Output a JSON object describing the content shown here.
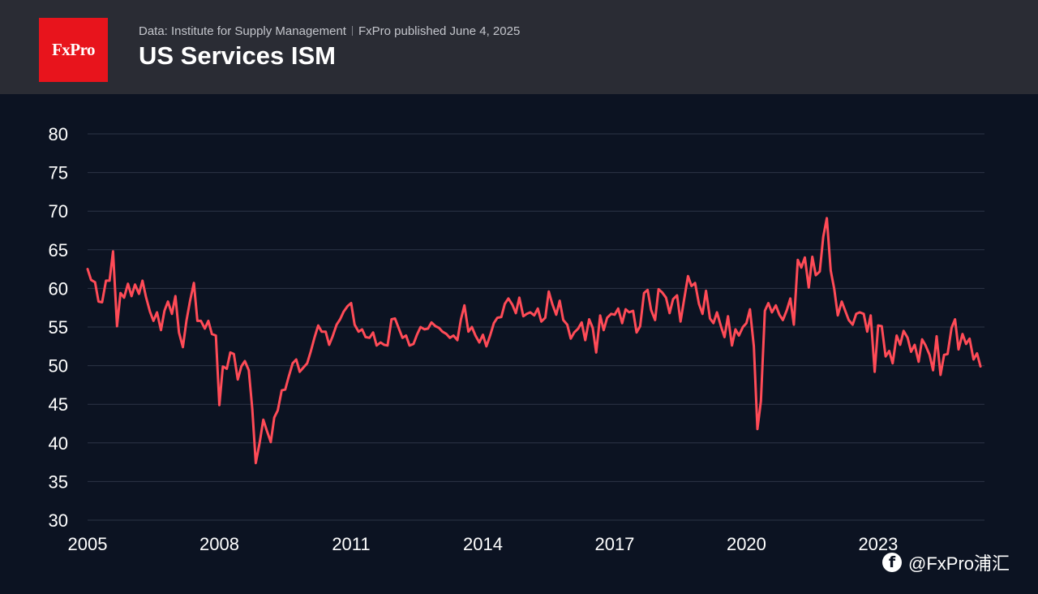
{
  "header": {
    "logo_text": "FxPro",
    "source": "Data: Institute for Supply Management",
    "published": "FxPro published June 4, 2025",
    "title": "US Services ISM"
  },
  "watermark": {
    "text": "@FxPro浦汇",
    "icon": "facebook-icon"
  },
  "colors": {
    "line": "#ff4b57",
    "background": "#0c1322",
    "header": "#2a2c34",
    "logo": "#e8141c",
    "grid": "#2c3446"
  },
  "chart_data": {
    "type": "line",
    "title": "US Services ISM",
    "xlabel": "",
    "ylabel": "",
    "ylim": [
      30,
      80
    ],
    "xlim": [
      2005.0,
      2025.42
    ],
    "grid": true,
    "y_ticks": [
      "80",
      "75",
      "70",
      "65",
      "60",
      "55",
      "50",
      "45",
      "40",
      "35",
      "30"
    ],
    "x_ticks": [
      "2005",
      "2008",
      "2011",
      "2014",
      "2017",
      "2020",
      "2023"
    ],
    "series": [
      {
        "name": "US Services ISM",
        "x": [
          2005.0,
          2005.08,
          2005.17,
          2005.25,
          2005.33,
          2005.42,
          2005.5,
          2005.58,
          2005.67,
          2005.75,
          2005.83,
          2005.92,
          2006.0,
          2006.08,
          2006.17,
          2006.25,
          2006.33,
          2006.42,
          2006.5,
          2006.58,
          2006.67,
          2006.75,
          2006.83,
          2006.92,
          2007.0,
          2007.08,
          2007.17,
          2007.25,
          2007.33,
          2007.42,
          2007.5,
          2007.58,
          2007.67,
          2007.75,
          2007.83,
          2007.92,
          2008.0,
          2008.08,
          2008.17,
          2008.25,
          2008.33,
          2008.42,
          2008.5,
          2008.58,
          2008.67,
          2008.75,
          2008.83,
          2008.92,
          2009.0,
          2009.08,
          2009.17,
          2009.25,
          2009.33,
          2009.42,
          2009.5,
          2009.58,
          2009.67,
          2009.75,
          2009.83,
          2009.92,
          2010.0,
          2010.08,
          2010.17,
          2010.25,
          2010.33,
          2010.42,
          2010.5,
          2010.58,
          2010.67,
          2010.75,
          2010.83,
          2010.92,
          2011.0,
          2011.08,
          2011.17,
          2011.25,
          2011.33,
          2011.42,
          2011.5,
          2011.58,
          2011.67,
          2011.75,
          2011.83,
          2011.92,
          2012.0,
          2012.08,
          2012.17,
          2012.25,
          2012.33,
          2012.42,
          2012.5,
          2012.58,
          2012.67,
          2012.75,
          2012.83,
          2012.92,
          2013.0,
          2013.08,
          2013.17,
          2013.25,
          2013.33,
          2013.42,
          2013.5,
          2013.58,
          2013.67,
          2013.75,
          2013.83,
          2013.92,
          2014.0,
          2014.08,
          2014.17,
          2014.25,
          2014.33,
          2014.42,
          2014.5,
          2014.58,
          2014.67,
          2014.75,
          2014.83,
          2014.92,
          2015.0,
          2015.08,
          2015.17,
          2015.25,
          2015.33,
          2015.42,
          2015.5,
          2015.58,
          2015.67,
          2015.75,
          2015.83,
          2015.92,
          2016.0,
          2016.08,
          2016.17,
          2016.25,
          2016.33,
          2016.42,
          2016.5,
          2016.58,
          2016.67,
          2016.75,
          2016.83,
          2016.92,
          2017.0,
          2017.08,
          2017.17,
          2017.25,
          2017.33,
          2017.42,
          2017.5,
          2017.58,
          2017.67,
          2017.75,
          2017.83,
          2017.92,
          2018.0,
          2018.08,
          2018.17,
          2018.25,
          2018.33,
          2018.42,
          2018.5,
          2018.58,
          2018.67,
          2018.75,
          2018.83,
          2018.92,
          2019.0,
          2019.08,
          2019.17,
          2019.25,
          2019.33,
          2019.42,
          2019.5,
          2019.58,
          2019.67,
          2019.75,
          2019.83,
          2019.92,
          2020.0,
          2020.08,
          2020.17,
          2020.25,
          2020.33,
          2020.42,
          2020.5,
          2020.58,
          2020.67,
          2020.75,
          2020.83,
          2020.92,
          2021.0,
          2021.08,
          2021.17,
          2021.25,
          2021.33,
          2021.42,
          2021.5,
          2021.58,
          2021.67,
          2021.75,
          2021.83,
          2021.92,
          2022.0,
          2022.08,
          2022.17,
          2022.25,
          2022.33,
          2022.42,
          2022.5,
          2022.58,
          2022.67,
          2022.75,
          2022.83,
          2022.92,
          2023.0,
          2023.08,
          2023.17,
          2023.25,
          2023.33,
          2023.42,
          2023.5,
          2023.58,
          2023.67,
          2023.75,
          2023.83,
          2023.92,
          2024.0,
          2024.08,
          2024.17,
          2024.25,
          2024.33,
          2024.42,
          2024.5,
          2024.58,
          2024.67,
          2024.75,
          2024.83,
          2024.92,
          2025.0,
          2025.08,
          2025.17,
          2025.25,
          2025.33
        ],
        "values": [
          62.5,
          61.1,
          60.8,
          58.3,
          58.2,
          61.0,
          61.0,
          64.8,
          55.1,
          59.4,
          58.8,
          60.6,
          59.0,
          60.5,
          59.3,
          61.0,
          58.9,
          57.0,
          55.8,
          56.9,
          54.6,
          57.1,
          58.3,
          56.7,
          59.0,
          54.3,
          52.4,
          55.8,
          58.3,
          60.7,
          55.8,
          55.8,
          54.8,
          55.8,
          54.1,
          53.9,
          44.9,
          49.9,
          49.6,
          51.7,
          51.5,
          48.2,
          49.9,
          50.6,
          49.4,
          44.4,
          37.4,
          40.1,
          43.0,
          41.6,
          40.1,
          43.3,
          44.2,
          46.8,
          46.9,
          48.6,
          50.3,
          50.8,
          49.2,
          49.8,
          50.3,
          51.8,
          53.7,
          55.2,
          54.4,
          54.4,
          52.7,
          53.8,
          55.3,
          56.0,
          57.0,
          57.7,
          58.1,
          55.3,
          54.4,
          54.7,
          53.7,
          53.6,
          54.3,
          52.6,
          53.0,
          52.7,
          52.6,
          56.0,
          56.1,
          54.9,
          53.6,
          53.9,
          52.6,
          52.8,
          54.0,
          55.0,
          54.7,
          54.8,
          55.6,
          55.1,
          54.9,
          54.4,
          54.1,
          53.6,
          53.9,
          53.3,
          56.0,
          57.8,
          54.4,
          55.0,
          53.9,
          53.0,
          54.0,
          52.5,
          54.0,
          55.5,
          56.2,
          56.3,
          58.0,
          58.7,
          57.9,
          56.8,
          58.8,
          56.4,
          56.7,
          56.9,
          56.5,
          57.4,
          55.7,
          56.2,
          59.6,
          58.0,
          56.6,
          58.4,
          55.9,
          55.3,
          53.5,
          54.3,
          54.8,
          55.6,
          53.3,
          56.0,
          54.9,
          51.7,
          56.5,
          54.6,
          56.2,
          56.7,
          56.6,
          57.4,
          55.5,
          57.3,
          56.9,
          57.1,
          54.3,
          55.1,
          59.4,
          59.8,
          57.2,
          55.9,
          59.9,
          59.5,
          58.8,
          56.8,
          58.6,
          59.1,
          55.7,
          58.5,
          61.6,
          60.3,
          60.7,
          58.0,
          56.7,
          59.7,
          56.1,
          55.5,
          56.9,
          55.1,
          53.7,
          56.4,
          52.6,
          54.7,
          53.9,
          55.0,
          55.5,
          57.3,
          52.5,
          41.8,
          45.4,
          57.1,
          58.1,
          56.9,
          57.8,
          56.6,
          55.9,
          57.2,
          58.7,
          55.3,
          63.7,
          62.7,
          64.0,
          60.1,
          64.1,
          61.7,
          62.2,
          66.7,
          69.1,
          62.3,
          59.9,
          56.5,
          58.3,
          57.1,
          55.9,
          55.3,
          56.7,
          56.9,
          56.7,
          54.4,
          56.5,
          49.2,
          55.2,
          55.1,
          51.2,
          51.9,
          50.3,
          53.9,
          52.7,
          54.5,
          53.6,
          51.8,
          52.7,
          50.5,
          53.4,
          52.6,
          51.4,
          49.4,
          53.8,
          48.8,
          51.4,
          51.5,
          54.9,
          56.0,
          52.1,
          54.1,
          52.8,
          53.5,
          50.8,
          51.6,
          49.9
        ]
      }
    ]
  }
}
